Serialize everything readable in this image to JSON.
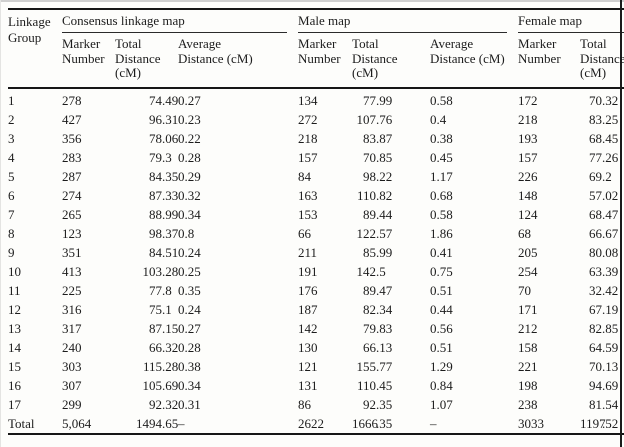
{
  "table": {
    "linkage_group_header": "Linkage\nGroup",
    "groups": [
      {
        "label": "Consensus linkage map",
        "sub": [
          "Marker\nNumber",
          "Total\nDistance\n(cM)",
          "Average\nDistance (cM)"
        ]
      },
      {
        "label": "Male map",
        "sub": [
          "Marker\nNumber",
          "Total\nDistance\n(cM)",
          "Average\nDistance (cM)"
        ]
      },
      {
        "label": "Female map",
        "sub": [
          "Marker\nNumber",
          "Total\nDistance\n(cM)"
        ]
      }
    ],
    "columns": [
      "Linkage Group",
      "Consensus Marker Number",
      "Consensus Total Distance (cM)",
      "Consensus Average Distance (cM)",
      "Male Marker Number",
      "Male Total Distance (cM)",
      "Male Average Distance (cM)",
      "Female Marker Number",
      "Female Total Distance (cM)"
    ],
    "rows": [
      [
        "1",
        "278",
        "74.49",
        "0.27",
        "134",
        "77.99",
        "0.58",
        "172",
        "70.32"
      ],
      [
        "2",
        "427",
        "96.31",
        "0.23",
        "272",
        "107.76",
        "0.4",
        "218",
        "83.25"
      ],
      [
        "3",
        "356",
        "78.06",
        "0.22",
        "218",
        "83.87",
        "0.38",
        "193",
        "68.45"
      ],
      [
        "4",
        "283",
        "79.3",
        "0.28",
        "157",
        "70.85",
        "0.45",
        "157",
        "77.26"
      ],
      [
        "5",
        "287",
        "84.35",
        "0.29",
        "84",
        "98.22",
        "1.17",
        "226",
        "69.2"
      ],
      [
        "6",
        "274",
        "87.33",
        "0.32",
        "163",
        "110.82",
        "0.68",
        "148",
        "57.02"
      ],
      [
        "7",
        "265",
        "88.99",
        "0.34",
        "153",
        "89.44",
        "0.58",
        "124",
        "68.47"
      ],
      [
        "8",
        "123",
        "98.37",
        "0.8",
        "66",
        "122.57",
        "1.86",
        "68",
        "66.67"
      ],
      [
        "9",
        "351",
        "84.51",
        "0.24",
        "211",
        "85.99",
        "0.41",
        "205",
        "80.08"
      ],
      [
        "10",
        "413",
        "103.28",
        "0.25",
        "191",
        "142.5",
        "0.75",
        "254",
        "63.39"
      ],
      [
        "11",
        "225",
        "77.8",
        "0.35",
        "176",
        "89.47",
        "0.51",
        "70",
        "32.42"
      ],
      [
        "12",
        "316",
        "75.1",
        "0.24",
        "187",
        "82.34",
        "0.44",
        "171",
        "67.19"
      ],
      [
        "13",
        "317",
        "87.15",
        "0.27",
        "142",
        "79.83",
        "0.56",
        "212",
        "82.85"
      ],
      [
        "14",
        "240",
        "66.32",
        "0.28",
        "130",
        "66.13",
        "0.51",
        "158",
        "64.59"
      ],
      [
        "15",
        "303",
        "115.28",
        "0.38",
        "121",
        "155.77",
        "1.29",
        "221",
        "70.13"
      ],
      [
        "16",
        "307",
        "105.69",
        "0.34",
        "131",
        "110.45",
        "0.84",
        "198",
        "94.69"
      ],
      [
        "17",
        "299",
        "92.32",
        "0.31",
        "86",
        "92.35",
        "1.07",
        "238",
        "81.54"
      ],
      [
        "Total",
        "5,064",
        "1494.65",
        "–",
        "2622",
        "1666.35",
        "–",
        "3033",
        "1197.52"
      ]
    ]
  }
}
